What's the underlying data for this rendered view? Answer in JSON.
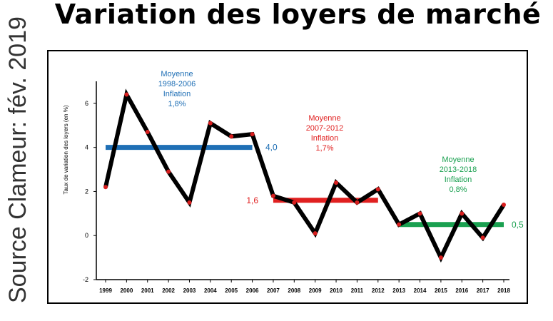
{
  "title": "Variation des loyers de marché",
  "source_note": "Source Clameur: fév. 2019",
  "colors": {
    "main": "#000000",
    "period1": "#1f6fb5",
    "period2": "#e02020",
    "period3": "#1aa050",
    "marker": "#d81e1e"
  },
  "chart_data": {
    "type": "line",
    "title": "Variation des loyers de marché",
    "xlabel": "",
    "ylabel": "Taux de variation des loyers (en %)",
    "ylim": [
      -2,
      7
    ],
    "yticks": [
      -2,
      0,
      2,
      4,
      6
    ],
    "x": [
      "1999",
      "2000",
      "2001",
      "2002",
      "2003",
      "2004",
      "2005",
      "2006",
      "2007",
      "2008",
      "2009",
      "2010",
      "2011",
      "2012",
      "2013",
      "2014",
      "2015",
      "2016",
      "2017",
      "2018"
    ],
    "series": [
      {
        "values": [
          2.2,
          6.4,
          4.7,
          2.9,
          1.5,
          5.1,
          4.5,
          4.6,
          1.8,
          1.5,
          0.1,
          2.4,
          1.5,
          2.1,
          0.5,
          1.0,
          -1.0,
          1.0,
          -0.1,
          1.4
        ]
      }
    ],
    "averages": [
      {
        "label": "Moyenne\n1998-2006\nInflation\n1,8%",
        "value": 4.0,
        "value_label": "4,0",
        "from": "1999",
        "to": "2006",
        "color": "#1f6fb5"
      },
      {
        "label": "Moyenne\n2007-2012\nInflation\n1,7%",
        "value": 1.6,
        "value_label": "1,6",
        "from": "2007",
        "to": "2012",
        "color": "#e02020"
      },
      {
        "label": "Moyenne\n2013-2018\nInflation\n0,8%",
        "value": 0.5,
        "value_label": "0,5",
        "from": "2013",
        "to": "2018",
        "color": "#1aa050"
      }
    ],
    "grid": false,
    "legend": "none"
  }
}
